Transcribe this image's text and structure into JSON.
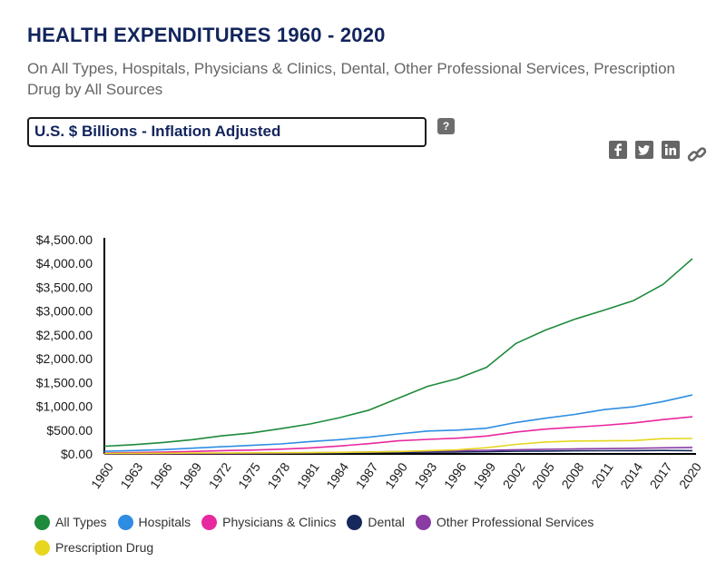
{
  "header": {
    "title": "HEALTH EXPENDITURES 1960 - 2020",
    "subtitle": "On All Types, Hospitals, Physicians & Clinics, Dental, Other Professional Services, Prescription Drug by All Sources",
    "measure_selected": "U.S. $ Billions - Inflation Adjusted",
    "help_label": "?"
  },
  "share_icons": [
    "facebook-icon",
    "twitter-icon",
    "linkedin-icon",
    "link-icon"
  ],
  "chart_data": {
    "type": "line",
    "title": "",
    "xlabel": "",
    "ylabel": "",
    "ylim": [
      0,
      4500
    ],
    "y_ticks": [
      "$0.00",
      "$500.00",
      "$1,000.00",
      "$1,500.00",
      "$2,000.00",
      "$2,500.00",
      "$3,000.00",
      "$3,500.00",
      "$4,000.00",
      "$4,500.00"
    ],
    "x_ticks": [
      "1960",
      "1963",
      "1966",
      "1969",
      "1972",
      "1975",
      "1978",
      "1981",
      "1984",
      "1987",
      "1990",
      "1993",
      "1996",
      "1999",
      "2002",
      "2005",
      "2008",
      "2011",
      "2014",
      "2017",
      "2020"
    ],
    "grid": false,
    "legend_position": "bottom",
    "x": [
      1960,
      1963,
      1966,
      1969,
      1972,
      1975,
      1978,
      1981,
      1984,
      1987,
      1990,
      1993,
      1996,
      1999,
      2002,
      2005,
      2008,
      2011,
      2014,
      2017,
      2020
    ],
    "series": [
      {
        "name": "All Types",
        "color": "#1e8a3c",
        "values": [
          160,
          195,
          240,
          300,
          380,
          440,
          530,
          630,
          760,
          920,
          1170,
          1420,
          1580,
          1820,
          2320,
          2600,
          2830,
          3020,
          3220,
          3560,
          4100
        ]
      },
      {
        "name": "Hospitals",
        "color": "#2e8de2",
        "values": [
          55,
          70,
          90,
          120,
          150,
          180,
          210,
          260,
          300,
          350,
          420,
          480,
          500,
          540,
          660,
          750,
          830,
          930,
          990,
          1100,
          1240
        ]
      },
      {
        "name": "Physicians & Clinics",
        "color": "#e8289e",
        "values": [
          20,
          28,
          38,
          52,
          68,
          80,
          100,
          125,
          165,
          215,
          275,
          305,
          330,
          375,
          460,
          520,
          560,
          600,
          650,
          720,
          780
        ]
      },
      {
        "name": "Dental",
        "color": "#16285c",
        "values": [
          4,
          5,
          6,
          8,
          10,
          12,
          14,
          17,
          22,
          27,
          32,
          36,
          40,
          46,
          55,
          60,
          64,
          66,
          68,
          73,
          68
        ]
      },
      {
        "name": "Other Professional Services",
        "color": "#8a3ca4",
        "values": [
          2,
          3,
          4,
          6,
          8,
          12,
          16,
          22,
          30,
          40,
          50,
          58,
          66,
          76,
          88,
          98,
          105,
          110,
          118,
          128,
          135
        ]
      },
      {
        "name": "Prescription Drug",
        "color": "#e6d61e",
        "values": [
          10,
          12,
          14,
          17,
          20,
          22,
          24,
          27,
          32,
          40,
          50,
          68,
          85,
          130,
          200,
          250,
          270,
          275,
          280,
          320,
          325
        ]
      }
    ]
  }
}
